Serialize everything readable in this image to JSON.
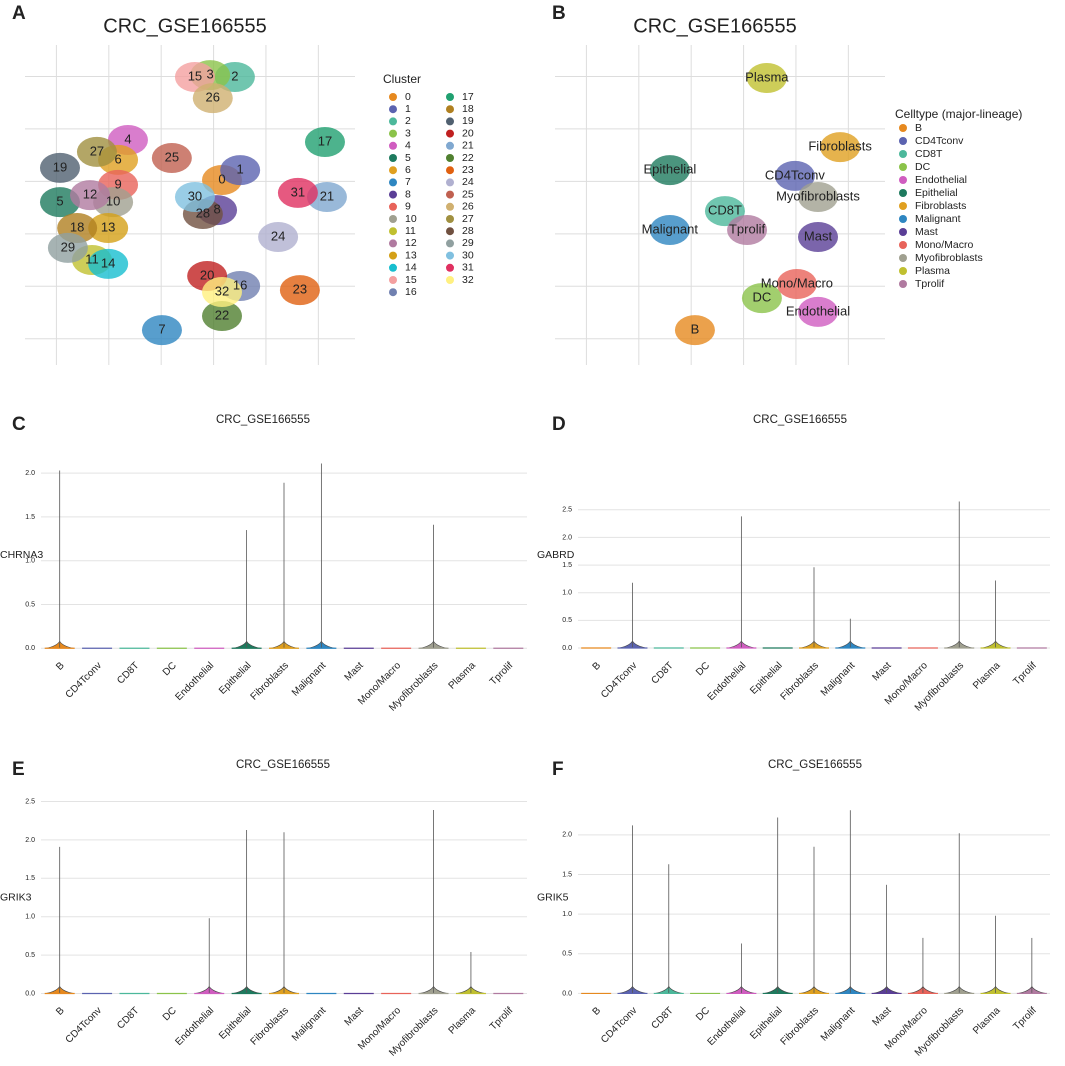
{
  "chart_data": [
    {
      "panel": "A",
      "type": "scatter",
      "title": "CRC_GSE166555",
      "legend_title": "Cluster",
      "xlim": [
        0,
        100
      ],
      "ylim": [
        0,
        100
      ],
      "series": [
        {
          "name": "0",
          "color": "#e6891f",
          "x": [
            59.7
          ],
          "y": [
            57.8
          ]
        },
        {
          "name": "1",
          "color": "#5b63b0",
          "x": [
            65.2
          ],
          "y": [
            60.9
          ]
        },
        {
          "name": "2",
          "color": "#4cb89b",
          "x": [
            63.6
          ],
          "y": [
            90
          ]
        },
        {
          "name": "3",
          "color": "#8bc34a",
          "x": [
            56.1
          ],
          "y": [
            90.6
          ]
        },
        {
          "name": "4",
          "color": "#d05dc0",
          "x": [
            31.2
          ],
          "y": [
            70.3
          ]
        },
        {
          "name": "5",
          "color": "#1e7a5e",
          "x": [
            10.6
          ],
          "y": [
            50.9
          ]
        },
        {
          "name": "6",
          "color": "#e0a020",
          "x": [
            28.2
          ],
          "y": [
            64.1
          ]
        },
        {
          "name": "7",
          "color": "#2e86c1",
          "x": [
            41.5
          ],
          "y": [
            10.9
          ]
        },
        {
          "name": "8",
          "color": "#5a3e96",
          "x": [
            58.2
          ],
          "y": [
            48.4
          ]
        },
        {
          "name": "9",
          "color": "#e8635a",
          "x": [
            28.2
          ],
          "y": [
            56.3
          ]
        },
        {
          "name": "10",
          "color": "#a0a090",
          "x": [
            26.7
          ],
          "y": [
            50.9
          ]
        },
        {
          "name": "11",
          "color": "#c0c030",
          "x": [
            20.3
          ],
          "y": [
            32.8
          ]
        },
        {
          "name": "12",
          "color": "#b07aa0",
          "x": [
            19.7
          ],
          "y": [
            53.1
          ]
        },
        {
          "name": "13",
          "color": "#d4a017",
          "x": [
            25.2
          ],
          "y": [
            42.8
          ]
        },
        {
          "name": "14",
          "color": "#17becf",
          "x": [
            25.2
          ],
          "y": [
            31.6
          ]
        },
        {
          "name": "15",
          "color": "#f4a0a0",
          "x": [
            51.5
          ],
          "y": [
            90
          ]
        },
        {
          "name": "16",
          "color": "#7080b0",
          "x": [
            65.2
          ],
          "y": [
            24.7
          ]
        },
        {
          "name": "17",
          "color": "#20a070",
          "x": [
            90.9
          ],
          "y": [
            69.7
          ]
        },
        {
          "name": "18",
          "color": "#b08020",
          "x": [
            15.8
          ],
          "y": [
            42.8
          ]
        },
        {
          "name": "19",
          "color": "#506070",
          "x": [
            10.6
          ],
          "y": [
            61.6
          ]
        },
        {
          "name": "20",
          "color": "#c02020",
          "x": [
            55.2
          ],
          "y": [
            27.8
          ]
        },
        {
          "name": "21",
          "color": "#80a8d0",
          "x": [
            91.5
          ],
          "y": [
            52.5
          ]
        },
        {
          "name": "22",
          "color": "#508030",
          "x": [
            59.7
          ],
          "y": [
            15.3
          ]
        },
        {
          "name": "23",
          "color": "#e06010",
          "x": [
            83.3
          ],
          "y": [
            23.4
          ]
        },
        {
          "name": "24",
          "color": "#b0b0d0",
          "x": [
            76.7
          ],
          "y": [
            40
          ]
        },
        {
          "name": "25",
          "color": "#c06050",
          "x": [
            44.5
          ],
          "y": [
            64.7
          ]
        },
        {
          "name": "26",
          "color": "#d0b070",
          "x": [
            56.9
          ],
          "y": [
            83.4
          ]
        },
        {
          "name": "27",
          "color": "#a09040",
          "x": [
            21.8
          ],
          "y": [
            66.6
          ]
        },
        {
          "name": "28",
          "color": "#705040",
          "x": [
            53.9
          ],
          "y": [
            47.2
          ]
        },
        {
          "name": "29",
          "color": "#90a0a0",
          "x": [
            13
          ],
          "y": [
            36.6
          ]
        },
        {
          "name": "30",
          "color": "#80c0e0",
          "x": [
            51.5
          ],
          "y": [
            52.5
          ]
        },
        {
          "name": "31",
          "color": "#e03060",
          "x": [
            82.7
          ],
          "y": [
            53.8
          ]
        },
        {
          "name": "32",
          "color": "#fff080",
          "x": [
            59.7
          ],
          "y": [
            22.8
          ]
        }
      ]
    },
    {
      "panel": "B",
      "type": "scatter",
      "title": "CRC_GSE166555",
      "legend_title": "Celltype (major-lineage)",
      "xlim": [
        0,
        100
      ],
      "ylim": [
        0,
        100
      ],
      "series": [
        {
          "name": "B",
          "color": "#e6891f",
          "x": [
            42.4
          ],
          "y": [
            10.9
          ]
        },
        {
          "name": "CD4Tconv",
          "color": "#5b63b0",
          "x": [
            72.7
          ],
          "y": [
            59.1
          ]
        },
        {
          "name": "CD8T",
          "color": "#4cb89b",
          "x": [
            51.5
          ],
          "y": [
            48.1
          ]
        },
        {
          "name": "DC",
          "color": "#8bc34a",
          "x": [
            62.7
          ],
          "y": [
            20.9
          ]
        },
        {
          "name": "Endothelial",
          "color": "#d05dc0",
          "x": [
            79.7
          ],
          "y": [
            16.6
          ]
        },
        {
          "name": "Epithelial",
          "color": "#1e7a5e",
          "x": [
            34.8
          ],
          "y": [
            60.9
          ]
        },
        {
          "name": "Fibroblasts",
          "color": "#e0a020",
          "x": [
            86.4
          ],
          "y": [
            68.1
          ]
        },
        {
          "name": "Malignant",
          "color": "#2e86c1",
          "x": [
            34.8
          ],
          "y": [
            42.2
          ]
        },
        {
          "name": "Mast",
          "color": "#5a3e96",
          "x": [
            79.7
          ],
          "y": [
            40
          ]
        },
        {
          "name": "Mono/Macro",
          "color": "#e8635a",
          "x": [
            73.3
          ],
          "y": [
            25.3
          ]
        },
        {
          "name": "Myofibroblasts",
          "color": "#a0a090",
          "x": [
            79.7
          ],
          "y": [
            52.5
          ]
        },
        {
          "name": "Plasma",
          "color": "#c0c030",
          "x": [
            64.2
          ],
          "y": [
            89.7
          ]
        },
        {
          "name": "Tprolif",
          "color": "#b07aa0",
          "x": [
            58.2
          ],
          "y": [
            42.2
          ]
        }
      ]
    },
    {
      "panel": "C",
      "type": "violin",
      "title": "CRC_GSE166555",
      "ylabel": "CHRNA3",
      "categories": [
        "B",
        "CD4Tconv",
        "CD8T",
        "DC",
        "Endothelial",
        "Epithelial",
        "Fibroblasts",
        "Malignant",
        "Mast",
        "Mono/Macro",
        "Myofibroblasts",
        "Plasma",
        "Tprolif"
      ],
      "colors": [
        "#e6891f",
        "#5b63b0",
        "#4cb89b",
        "#8bc34a",
        "#d05dc0",
        "#1e7a5e",
        "#e0a020",
        "#2e86c1",
        "#5a3e96",
        "#e8635a",
        "#a0a090",
        "#c0c030",
        "#b07aa0"
      ],
      "values": [
        2.03,
        0,
        0,
        0,
        0,
        1.35,
        1.89,
        2.11,
        0,
        0,
        1.41,
        0,
        0
      ],
      "ylim": [
        -0.02,
        2.15
      ],
      "yticks": [
        {
          "value": 0,
          "label": "0.0"
        },
        {
          "value": 0.5,
          "label": "0.5"
        },
        {
          "value": 1,
          "label": "1.0"
        },
        {
          "value": 1.5,
          "label": "1.5"
        },
        {
          "value": 2,
          "label": "2.0"
        }
      ],
      "grid": true
    },
    {
      "panel": "D",
      "type": "violin",
      "title": "CRC_GSE166555",
      "ylabel": "GABRD",
      "categories": [
        "B",
        "CD4Tconv",
        "CD8T",
        "DC",
        "Endothelial",
        "Epithelial",
        "Fibroblasts",
        "Malignant",
        "Mast",
        "Mono/Macro",
        "Myofibroblasts",
        "Plasma",
        "Tprolif"
      ],
      "colors": [
        "#e6891f",
        "#5b63b0",
        "#4cb89b",
        "#8bc34a",
        "#d05dc0",
        "#1e7a5e",
        "#e0a020",
        "#2e86c1",
        "#5a3e96",
        "#e8635a",
        "#a0a090",
        "#c0c030",
        "#b07aa0"
      ],
      "values": [
        0,
        1.18,
        0,
        0,
        2.38,
        0,
        1.46,
        0.53,
        0,
        0,
        2.65,
        1.22,
        0
      ],
      "ylim": [
        -0.036,
        3.4
      ],
      "yticks": [
        {
          "value": 0,
          "label": "0.0"
        },
        {
          "value": 0.5,
          "label": "0.5"
        },
        {
          "value": 1,
          "label": "1.0"
        },
        {
          "value": 1.5,
          "label": "1.5"
        },
        {
          "value": 2,
          "label": "2.0"
        },
        {
          "value": 2.5,
          "label": "2.5"
        }
      ],
      "grid": true
    },
    {
      "panel": "E",
      "type": "violin",
      "title": "CRC_GSE166555",
      "ylabel": "GRIK3",
      "categories": [
        "B",
        "CD4Tconv",
        "CD8T",
        "DC",
        "Endothelial",
        "Epithelial",
        "Fibroblasts",
        "Malignant",
        "Mast",
        "Mono/Macro",
        "Myofibroblasts",
        "Plasma",
        "Tprolif"
      ],
      "colors": [
        "#e6891f",
        "#5b63b0",
        "#4cb89b",
        "#8bc34a",
        "#d05dc0",
        "#1e7a5e",
        "#e0a020",
        "#2e86c1",
        "#5a3e96",
        "#e8635a",
        "#a0a090",
        "#c0c030",
        "#b07aa0"
      ],
      "values": [
        1.91,
        0,
        0,
        0,
        0.98,
        2.13,
        2.1,
        0,
        0,
        0,
        2.39,
        0.54,
        0
      ],
      "ylim": [
        -0.02,
        2.52
      ],
      "yticks": [
        {
          "value": 0,
          "label": "0.0"
        },
        {
          "value": 0.5,
          "label": "0.5"
        },
        {
          "value": 1,
          "label": "1.0"
        },
        {
          "value": 1.5,
          "label": "1.5"
        },
        {
          "value": 2,
          "label": "2.0"
        },
        {
          "value": 2.5,
          "label": "2.5"
        }
      ],
      "grid": true
    },
    {
      "panel": "F",
      "type": "violin",
      "title": "CRC_GSE166555",
      "ylabel": "GRIK5",
      "categories": [
        "B",
        "CD4Tconv",
        "CD8T",
        "DC",
        "Endothelial",
        "Epithelial",
        "Fibroblasts",
        "Malignant",
        "Mast",
        "Mono/Macro",
        "Myofibroblasts",
        "Plasma",
        "Tprolif"
      ],
      "colors": [
        "#e6891f",
        "#5b63b0",
        "#4cb89b",
        "#8bc34a",
        "#d05dc0",
        "#1e7a5e",
        "#e0a020",
        "#2e86c1",
        "#5a3e96",
        "#e8635a",
        "#a0a090",
        "#c0c030",
        "#b07aa0"
      ],
      "values": [
        0,
        2.12,
        1.63,
        0,
        0.63,
        2.22,
        1.85,
        2.31,
        1.37,
        0.7,
        2.02,
        0.98,
        0.7
      ],
      "ylim": [
        -0.02,
        2.44
      ],
      "yticks": [
        {
          "value": 0,
          "label": "0.0"
        },
        {
          "value": 0.5,
          "label": "0.5"
        },
        {
          "value": 1,
          "label": "1.0"
        },
        {
          "value": 1.5,
          "label": "1.5"
        },
        {
          "value": 2,
          "label": "2.0"
        }
      ],
      "grid": true
    }
  ]
}
